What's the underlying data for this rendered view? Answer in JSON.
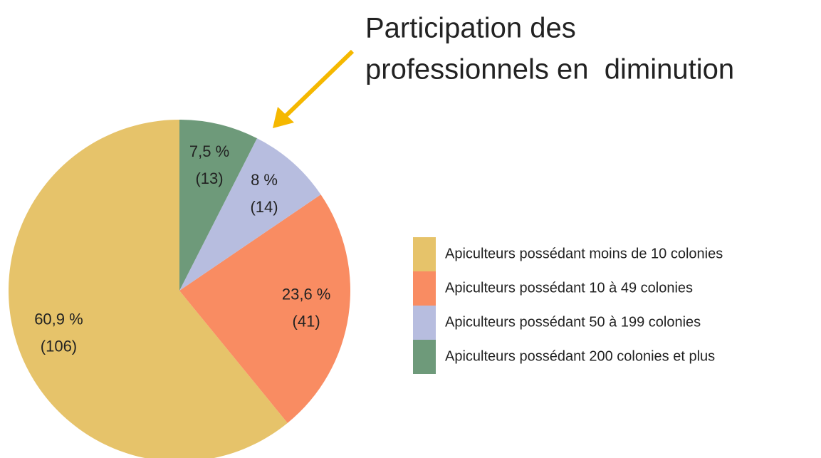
{
  "chart_data": {
    "type": "pie",
    "annotation": [
      "Participation des",
      "professionnels en  diminution"
    ],
    "categories": [
      "Apiculteurs possédant moins de 10 colonies",
      "Apiculteurs possédant 10 à 49 colonies",
      "Apiculteurs possédant 50 à 199 colonies",
      "Apiculteurs possédant 200 colonies et plus"
    ],
    "values": [
      60.9,
      23.6,
      8,
      7.5
    ],
    "value_labels": [
      "60,9 %",
      "23,6 %",
      "8 %",
      "7,5 %"
    ],
    "counts": [
      106,
      41,
      14,
      13
    ],
    "count_labels": [
      "(106)",
      "(41)",
      "(14)",
      "(13)"
    ],
    "colors": [
      "#e6c36a",
      "#f98c62",
      "#b7bddf",
      "#6e9a7a"
    ],
    "annotation_color": "#f5b800"
  }
}
